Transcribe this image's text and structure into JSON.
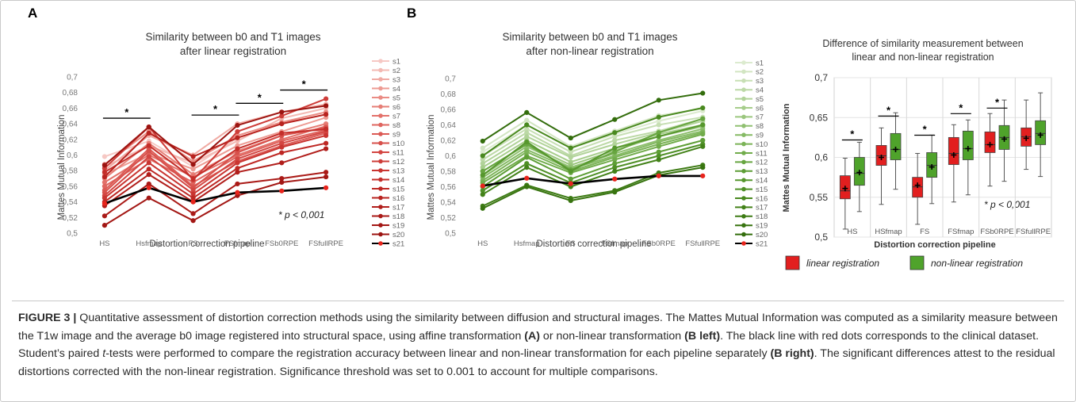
{
  "panel_labels": {
    "a": "A",
    "b": "B"
  },
  "chart_data": [
    {
      "id": "A",
      "type": "line",
      "title_lines": [
        "Similarity between b0 and T1 images",
        "after linear registration"
      ],
      "xlabel": "Distortion correction pipeline",
      "ylabel": "Mattes Mutual Information",
      "categories": [
        "HS",
        "Hsfmap",
        "FS",
        "FSfmap",
        "FSb0RPE",
        "FSfullRPE"
      ],
      "ylim": [
        0.5,
        0.7
      ],
      "yticks": [
        "0,5",
        "0,52",
        "0,54",
        "0,56",
        "0,58",
        "0,6",
        "0,62",
        "0,64",
        "0,66",
        "0,68",
        "0,7"
      ],
      "annotation": "* p < 0,001",
      "significance_marks": [
        {
          "from": 0,
          "to": 1,
          "label": "*"
        },
        {
          "from": 2,
          "to": 3,
          "label": "*"
        },
        {
          "from": 3,
          "to": 4,
          "label": "*"
        },
        {
          "from": 4,
          "to": 5,
          "label": "*"
        }
      ],
      "series": [
        {
          "name": "s1",
          "color": "#f6c8c4",
          "values": [
            0.598,
            0.618,
            0.585,
            0.622,
            0.64,
            0.652
          ]
        },
        {
          "name": "s2",
          "color": "#f3b9b3",
          "values": [
            0.585,
            0.612,
            0.59,
            0.618,
            0.647,
            0.66
          ]
        },
        {
          "name": "s3",
          "color": "#f0aaa3",
          "values": [
            0.58,
            0.625,
            0.6,
            0.64,
            0.655,
            0.665
          ]
        },
        {
          "name": "s4",
          "color": "#ed9b93",
          "values": [
            0.575,
            0.602,
            0.582,
            0.612,
            0.63,
            0.648
          ]
        },
        {
          "name": "s5",
          "color": "#ea8c84",
          "values": [
            0.588,
            0.63,
            0.592,
            0.625,
            0.642,
            0.655
          ]
        },
        {
          "name": "s6",
          "color": "#e67e76",
          "values": [
            0.57,
            0.615,
            0.575,
            0.605,
            0.625,
            0.64
          ]
        },
        {
          "name": "s7",
          "color": "#e3716a",
          "values": [
            0.565,
            0.6,
            0.572,
            0.6,
            0.62,
            0.637
          ]
        },
        {
          "name": "s8",
          "color": "#df655f",
          "values": [
            0.56,
            0.595,
            0.565,
            0.598,
            0.618,
            0.632
          ]
        },
        {
          "name": "s9",
          "color": "#db5a55",
          "values": [
            0.555,
            0.608,
            0.56,
            0.592,
            0.612,
            0.628
          ]
        },
        {
          "name": "s10",
          "color": "#d7504b",
          "values": [
            0.552,
            0.605,
            0.558,
            0.603,
            0.625,
            0.635
          ]
        },
        {
          "name": "s11",
          "color": "#d34642",
          "values": [
            0.548,
            0.598,
            0.555,
            0.595,
            0.615,
            0.63
          ]
        },
        {
          "name": "s12",
          "color": "#ce3d39",
          "values": [
            0.583,
            0.636,
            0.568,
            0.63,
            0.65,
            0.672
          ]
        },
        {
          "name": "s13",
          "color": "#c93531",
          "values": [
            0.545,
            0.59,
            0.55,
            0.59,
            0.61,
            0.625
          ]
        },
        {
          "name": "s14",
          "color": "#c42e2a",
          "values": [
            0.578,
            0.612,
            0.57,
            0.608,
            0.628,
            0.633
          ]
        },
        {
          "name": "s15",
          "color": "#be2824",
          "values": [
            0.54,
            0.582,
            0.545,
            0.583,
            0.603,
            0.615
          ]
        },
        {
          "name": "s16",
          "color": "#b8231f",
          "values": [
            0.572,
            0.628,
            0.598,
            0.622,
            0.64,
            0.652
          ]
        },
        {
          "name": "s17",
          "color": "#b11e1b",
          "values": [
            0.535,
            0.575,
            0.54,
            0.578,
            0.59,
            0.608
          ]
        },
        {
          "name": "s18",
          "color": "#aa1a17",
          "values": [
            0.522,
            0.563,
            0.525,
            0.563,
            0.57,
            0.578
          ]
        },
        {
          "name": "s19",
          "color": "#a31714",
          "values": [
            0.51,
            0.545,
            0.516,
            0.548,
            0.565,
            0.572
          ]
        },
        {
          "name": "s20",
          "color": "#9c1411",
          "values": [
            0.587,
            0.636,
            0.588,
            0.638,
            0.655,
            0.663
          ]
        },
        {
          "name": "s21",
          "color": "#000000",
          "marker": "#e8241c",
          "values": [
            0.538,
            0.558,
            0.54,
            0.552,
            0.554,
            0.558
          ]
        }
      ]
    },
    {
      "id": "B-left",
      "type": "line",
      "title_lines": [
        "Similarity between b0 and T1 images",
        "after non-linear registration"
      ],
      "xlabel": "Distortion correction pipeline",
      "ylabel": "Mattes Mutual Information",
      "categories": [
        "HS",
        "Hsfmap",
        "FS",
        "FSfmap",
        "FSb0RPE",
        "FSfullRPE"
      ],
      "ylim": [
        0.5,
        0.7
      ],
      "yticks": [
        "0,5",
        "0,52",
        "0,54",
        "0,56",
        "0,58",
        "0,6",
        "0,62",
        "0,64",
        "0,66",
        "0,68",
        "0,7"
      ],
      "series": [
        {
          "name": "s1",
          "color": "#dcebcf",
          "values": [
            0.605,
            0.64,
            0.61,
            0.628,
            0.645,
            0.658
          ]
        },
        {
          "name": "s2",
          "color": "#d2e5c2",
          "values": [
            0.61,
            0.646,
            0.612,
            0.632,
            0.652,
            0.661
          ]
        },
        {
          "name": "s3",
          "color": "#c7dfb4",
          "values": [
            0.6,
            0.635,
            0.605,
            0.625,
            0.64,
            0.65
          ]
        },
        {
          "name": "s4",
          "color": "#bcd9a6",
          "values": [
            0.595,
            0.63,
            0.6,
            0.62,
            0.632,
            0.648
          ]
        },
        {
          "name": "s5",
          "color": "#b1d399",
          "values": [
            0.59,
            0.625,
            0.598,
            0.615,
            0.63,
            0.645
          ]
        },
        {
          "name": "s6",
          "color": "#a6cd8b",
          "values": [
            0.585,
            0.62,
            0.592,
            0.61,
            0.628,
            0.64
          ]
        },
        {
          "name": "s7",
          "color": "#9bc67e",
          "values": [
            0.58,
            0.615,
            0.588,
            0.607,
            0.625,
            0.638
          ]
        },
        {
          "name": "s8",
          "color": "#90c071",
          "values": [
            0.575,
            0.612,
            0.585,
            0.603,
            0.62,
            0.635
          ]
        },
        {
          "name": "s9",
          "color": "#85ba64",
          "values": [
            0.572,
            0.608,
            0.583,
            0.6,
            0.618,
            0.632
          ]
        },
        {
          "name": "s10",
          "color": "#7bb357",
          "values": [
            0.568,
            0.605,
            0.58,
            0.598,
            0.615,
            0.63
          ]
        },
        {
          "name": "s11",
          "color": "#71ac4b",
          "values": [
            0.565,
            0.6,
            0.578,
            0.595,
            0.612,
            0.628
          ]
        },
        {
          "name": "s12",
          "color": "#67a540",
          "values": [
            0.58,
            0.615,
            0.582,
            0.605,
            0.63,
            0.648
          ]
        },
        {
          "name": "s13",
          "color": "#5e9e36",
          "values": [
            0.56,
            0.598,
            0.57,
            0.59,
            0.605,
            0.62
          ]
        },
        {
          "name": "s14",
          "color": "#56972d",
          "values": [
            0.575,
            0.618,
            0.58,
            0.61,
            0.625,
            0.64
          ]
        },
        {
          "name": "s15",
          "color": "#4f9026",
          "values": [
            0.555,
            0.59,
            0.565,
            0.585,
            0.6,
            0.615
          ]
        },
        {
          "name": "s16",
          "color": "#49891f",
          "values": [
            0.6,
            0.64,
            0.61,
            0.63,
            0.65,
            0.662
          ]
        },
        {
          "name": "s17",
          "color": "#438219",
          "values": [
            0.55,
            0.585,
            0.56,
            0.58,
            0.595,
            0.612
          ]
        },
        {
          "name": "s18",
          "color": "#3d7b14",
          "values": [
            0.535,
            0.562,
            0.545,
            0.555,
            0.578,
            0.588
          ]
        },
        {
          "name": "s19",
          "color": "#387410",
          "values": [
            0.532,
            0.56,
            0.542,
            0.553,
            0.575,
            0.585
          ]
        },
        {
          "name": "s20",
          "color": "#336d0c",
          "values": [
            0.619,
            0.656,
            0.623,
            0.647,
            0.672,
            0.681
          ]
        },
        {
          "name": "s21",
          "color": "#000000",
          "marker": "#e8241c",
          "values": [
            0.561,
            0.571,
            0.564,
            0.57,
            0.574,
            0.574
          ]
        }
      ]
    },
    {
      "id": "B-right",
      "type": "box",
      "title_lines": [
        "Difference of similarity measurement between",
        "linear and non-linear registration"
      ],
      "xlabel": "Distortion correction pipeline",
      "ylabel": "Mattes Mutual Information",
      "categories": [
        "HS",
        "HSfmap",
        "FS",
        "FSfmap",
        "FSb0RPE",
        "FSfullRPE"
      ],
      "ylim": [
        0.5,
        0.7
      ],
      "yticks": [
        "0,5",
        "0,55",
        "0,6",
        "0,65",
        "0,7"
      ],
      "annotation": "* p < 0,001",
      "legend": [
        {
          "label": "linear registration",
          "color": "#e21f1f"
        },
        {
          "label": "non-linear registration",
          "color": "#4fa32b"
        }
      ],
      "significant": [
        "*",
        "*",
        "*",
        "*",
        "*",
        ""
      ],
      "linear": [
        {
          "min": 0.51,
          "q1": 0.548,
          "median": 0.558,
          "q3": 0.577,
          "max": 0.599,
          "mean": 0.561
        },
        {
          "min": 0.541,
          "q1": 0.59,
          "median": 0.602,
          "q3": 0.615,
          "max": 0.637,
          "mean": 0.6
        },
        {
          "min": 0.516,
          "q1": 0.55,
          "median": 0.563,
          "q3": 0.575,
          "max": 0.605,
          "mean": 0.565
        },
        {
          "min": 0.544,
          "q1": 0.591,
          "median": 0.605,
          "q3": 0.625,
          "max": 0.641,
          "mean": 0.603
        },
        {
          "min": 0.564,
          "q1": 0.606,
          "median": 0.616,
          "q3": 0.632,
          "max": 0.655,
          "mean": 0.616
        },
        {
          "min": 0.585,
          "q1": 0.614,
          "median": 0.626,
          "q3": 0.637,
          "max": 0.672,
          "mean": 0.624
        }
      ],
      "nonlinear": [
        {
          "min": 0.532,
          "q1": 0.565,
          "median": 0.58,
          "q3": 0.6,
          "max": 0.619,
          "mean": 0.581
        },
        {
          "min": 0.56,
          "q1": 0.597,
          "median": 0.61,
          "q3": 0.63,
          "max": 0.656,
          "mean": 0.61
        },
        {
          "min": 0.542,
          "q1": 0.575,
          "median": 0.59,
          "q3": 0.606,
          "max": 0.628,
          "mean": 0.588
        },
        {
          "min": 0.553,
          "q1": 0.597,
          "median": 0.611,
          "q3": 0.633,
          "max": 0.647,
          "mean": 0.611
        },
        {
          "min": 0.57,
          "q1": 0.61,
          "median": 0.625,
          "q3": 0.64,
          "max": 0.672,
          "mean": 0.623
        },
        {
          "min": 0.576,
          "q1": 0.616,
          "median": 0.63,
          "q3": 0.646,
          "max": 0.681,
          "mean": 0.628
        }
      ]
    }
  ],
  "caption": {
    "label": "FIGURE 3 |",
    "t1": " Quantitative assessment of distortion correction methods using the similarity between diffusion and structural images. The Mattes Mutual Information was computed as a similarity measure between the T1w image and the average b0 image registered into structural space, using affine transformation ",
    "b1": "(A)",
    "t2": " or non-linear transformation ",
    "b2": "(B left)",
    "t3": ". The black line with red dots corresponds to the clinical dataset. Student’s paired ",
    "i1": "t",
    "t4": "-tests were performed to compare the registration accuracy between linear and non-linear transformation for each pipeline separately ",
    "b3": "(B right)",
    "t5": ". The significant differences attest to the residual distortions corrected with the non-linear registration. Significance threshold was set to 0.001 to account for multiple comparisons."
  }
}
